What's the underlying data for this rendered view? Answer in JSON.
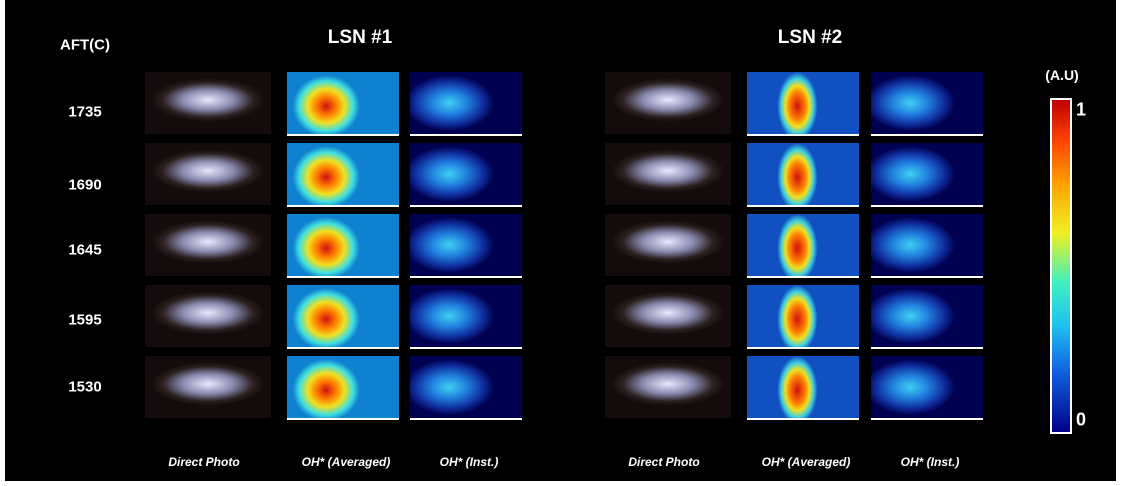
{
  "row_header": "AFT(C)",
  "rows": [
    "1735",
    "1690",
    "1645",
    "1595",
    "1530"
  ],
  "groups": [
    {
      "title": "LSN #1",
      "columns": [
        "Direct Photo",
        "OH* (Averaged)",
        "OH* (Inst.)"
      ]
    },
    {
      "title": "LSN #2",
      "columns": [
        "Direct Photo",
        "OH* (Averaged)",
        "OH* (Inst.)"
      ]
    }
  ],
  "colorbar": {
    "label": "(A.U)",
    "max": "1",
    "min": "0"
  }
}
